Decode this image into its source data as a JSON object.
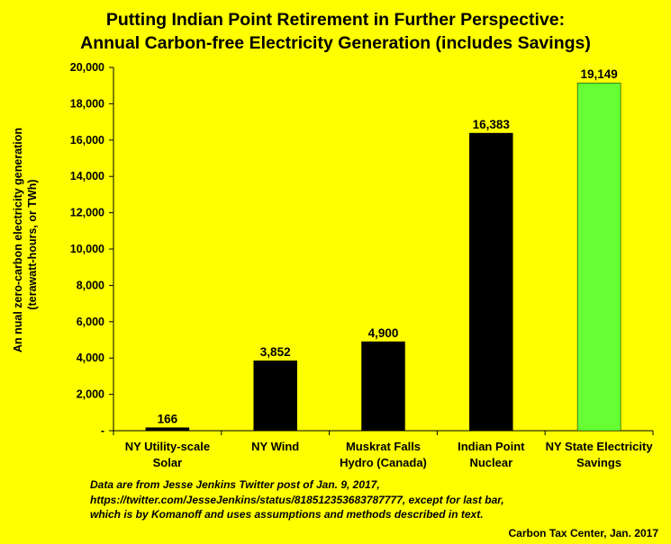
{
  "title_line1": "Putting Indian Point Retirement in Further Perspective:",
  "title_line2": "Annual Carbon-free Electricity Generation (includes Savings)",
  "ylabel_line1": "An nual zero-carbon electricity generation",
  "ylabel_line2": "(terawatt-hours, or TWh)",
  "note_line1": "Data  are from Jesse Jenkins Twitter post of Jan. 9, 2017,",
  "note_line2": "https://twitter.com/JesseJenkins/status/818512353683787777,  except for last bar,",
  "note_line3": "which is by Komanoff and uses assumptions and methods described in text.",
  "credit": "Carbon Tax Center, Jan. 2017",
  "colors": {
    "background": "#ffff00",
    "bar": "#000000",
    "highlight": "#66ff33"
  },
  "chart_data": {
    "type": "bar",
    "title": "Putting Indian Point Retirement in Further Perspective: Annual Carbon-free Electricity Generation (includes Savings)",
    "ylabel": "An nual zero-carbon electricity generation (terawatt-hours, or TWh)",
    "xlabel": "",
    "ylim": [
      0,
      20000
    ],
    "yticks": [
      0,
      2000,
      4000,
      6000,
      8000,
      10000,
      12000,
      14000,
      16000,
      18000,
      20000
    ],
    "ytick_labels": [
      "-",
      "2,000",
      "4,000",
      "6,000",
      "8,000",
      "10,000",
      "12,000",
      "14,000",
      "16,000",
      "18,000",
      "20,000"
    ],
    "grid": false,
    "legend": "none",
    "categories": [
      [
        "NY Utility-scale",
        "Solar"
      ],
      [
        "NY Wind"
      ],
      [
        "Muskrat Falls",
        "Hydro (Canada)"
      ],
      [
        "Indian Point",
        "Nuclear"
      ],
      [
        "NY State Electricity",
        "Savings"
      ]
    ],
    "values": [
      166,
      3852,
      4900,
      16383,
      19149
    ],
    "value_labels": [
      "166",
      "3,852",
      "4,900",
      "16,383",
      "19,149"
    ],
    "bar_colors": [
      "#000000",
      "#000000",
      "#000000",
      "#000000",
      "#66ff33"
    ]
  }
}
